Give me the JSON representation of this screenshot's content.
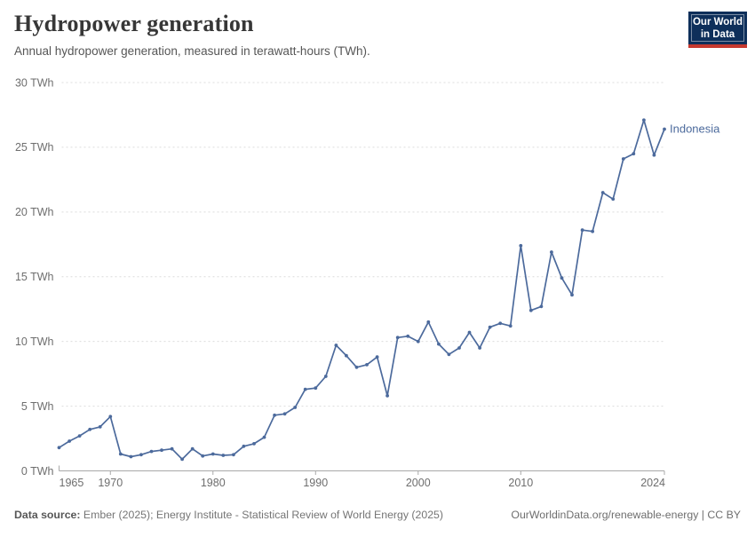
{
  "header": {
    "title": "Hydropower generation",
    "subtitle": "Annual hydropower generation, measured in terawatt-hours (TWh).",
    "logo": {
      "line1": "Our World",
      "line2": "in Data"
    }
  },
  "footer": {
    "source_label": "Data source:",
    "source_text": " Ember (2025); Energy Institute - Statistical Review of World Energy (2025)",
    "credit": "OurWorldinData.org/renewable-energy | CC BY"
  },
  "colors": {
    "series": "#4C6A9C",
    "grid": "#dcdcdc",
    "axis": "#a9a9a9",
    "tick_label": "#6e6e6e"
  },
  "chart_data": {
    "type": "line",
    "title": "Hydropower generation",
    "subtitle": "Annual hydropower generation, measured in terawatt-hours (TWh).",
    "unit": "TWh",
    "xlim": [
      1965,
      2024
    ],
    "ylim": [
      0,
      30
    ],
    "x_ticks": [
      1965,
      1970,
      1980,
      1990,
      2000,
      2010,
      2024
    ],
    "y_ticks": [
      0,
      5,
      10,
      15,
      20,
      25,
      30
    ],
    "y_tick_suffix": " TWh",
    "grid": "horizontal-dashed",
    "legend": "inline-end-label",
    "series": [
      {
        "name": "Indonesia",
        "color": "#4C6A9C",
        "x": [
          1965,
          1966,
          1967,
          1968,
          1969,
          1970,
          1971,
          1972,
          1973,
          1974,
          1975,
          1976,
          1977,
          1978,
          1979,
          1980,
          1981,
          1982,
          1983,
          1984,
          1985,
          1986,
          1987,
          1988,
          1989,
          1990,
          1991,
          1992,
          1993,
          1994,
          1995,
          1996,
          1997,
          1998,
          1999,
          2000,
          2001,
          2002,
          2003,
          2004,
          2005,
          2006,
          2007,
          2008,
          2009,
          2010,
          2011,
          2012,
          2013,
          2014,
          2015,
          2016,
          2017,
          2018,
          2019,
          2020,
          2021,
          2022,
          2023,
          2024
        ],
        "values": [
          1.8,
          2.3,
          2.7,
          3.2,
          3.4,
          4.2,
          1.3,
          1.1,
          1.25,
          1.5,
          1.6,
          1.7,
          0.9,
          1.7,
          1.15,
          1.3,
          1.2,
          1.25,
          1.9,
          2.1,
          2.6,
          4.3,
          4.4,
          4.9,
          6.3,
          6.4,
          7.3,
          9.7,
          8.9,
          8.0,
          8.2,
          8.8,
          5.8,
          10.3,
          10.4,
          10.0,
          11.5,
          9.8,
          9.0,
          9.5,
          10.7,
          9.5,
          11.1,
          11.4,
          11.2,
          17.4,
          12.4,
          12.7,
          16.9,
          14.9,
          13.6,
          18.6,
          18.5,
          21.5,
          21.0,
          24.1,
          24.5,
          27.1,
          24.4,
          26.4
        ]
      }
    ]
  }
}
